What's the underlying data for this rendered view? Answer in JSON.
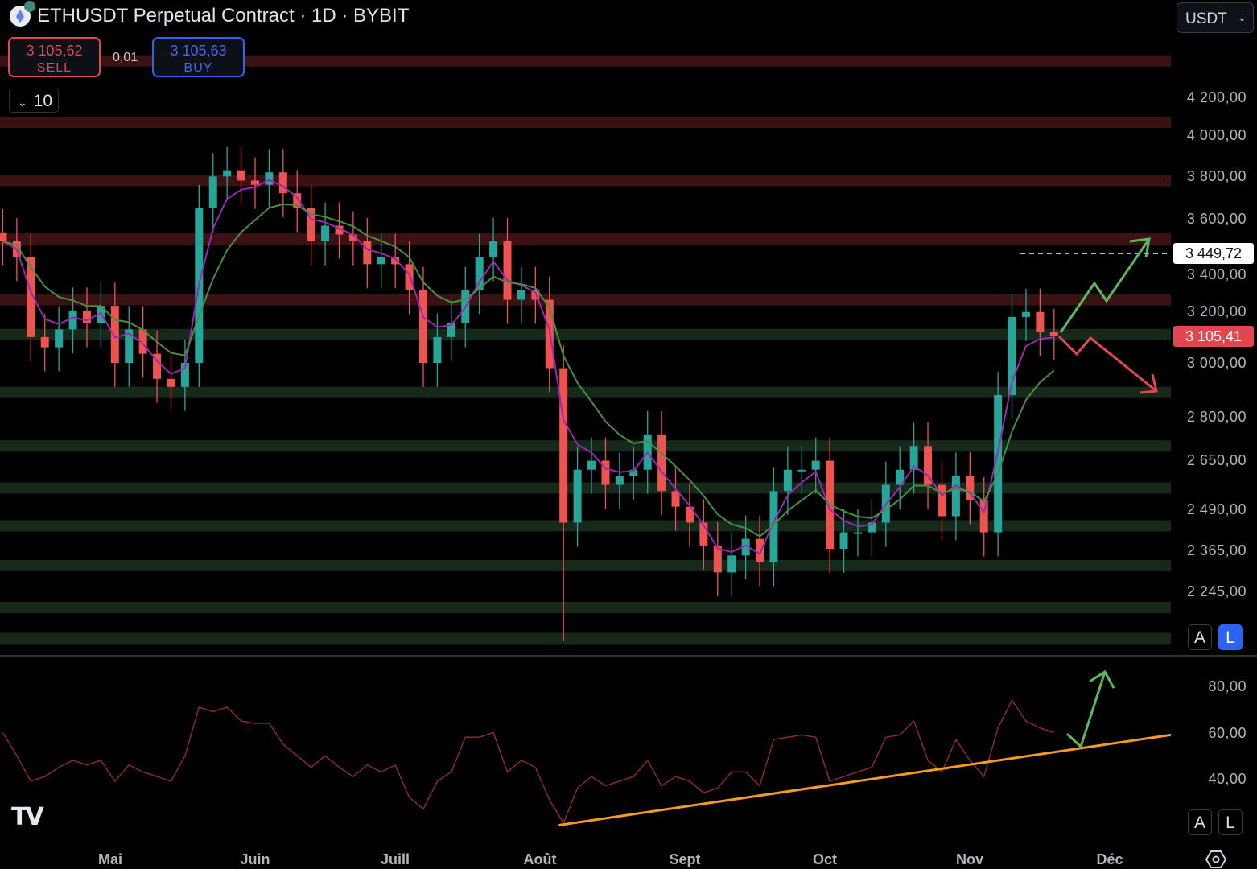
{
  "header": {
    "title": "ETHUSDT Perpetual Contract · 1D · BYBIT",
    "sell_price": "3 105,62",
    "sell_label": "SELL",
    "spread": "0,01",
    "buy_price": "3 105,63",
    "buy_label": "BUY",
    "quantity": "10",
    "currency": "USDT"
  },
  "price_axis": {
    "ticks": [
      "4 200,00",
      "4 000,00",
      "3 800,00",
      "3 600,00",
      "3 400,00",
      "3 200,00",
      "3 000,00",
      "2 800,00",
      "2 650,00",
      "2 490,00",
      "2 365,00",
      "2 245,00"
    ],
    "high_marker": "3 449,72",
    "last_price": "3 105,41",
    "auto_label": "A",
    "log_label": "L",
    "log_scale": true
  },
  "rsi_axis": {
    "ticks": [
      "80,00",
      "60,00",
      "40,00"
    ],
    "auto_label": "A",
    "log_label": "L"
  },
  "time_axis": {
    "months": [
      "Mai",
      "Juin",
      "Juill",
      "Août",
      "Sept",
      "Oct",
      "Nov",
      "Déc"
    ]
  },
  "colors": {
    "up": "#26a69a",
    "down": "#ef5350",
    "ma_fast": "#9c27b0",
    "ma_slow": "#4a8f3f",
    "resistance": "#3a1214",
    "support": "#16291a",
    "rsi": "#8b2a2a",
    "trendline": "#f59a23",
    "arrow_up": "#5cb85c",
    "arrow_down": "#e0474f"
  },
  "chart_data": {
    "type": "candlestick",
    "scale": "log",
    "ylim": [
      2100,
      4450
    ],
    "dates": [
      "2024-04-08",
      "2024-04-11",
      "2024-04-14",
      "2024-04-17",
      "2024-04-20",
      "2024-04-23",
      "2024-04-26",
      "2024-04-29",
      "2024-05-02",
      "2024-05-05",
      "2024-05-08",
      "2024-05-11",
      "2024-05-14",
      "2024-05-17",
      "2024-05-20",
      "2024-05-23",
      "2024-05-26",
      "2024-05-29",
      "2024-06-01",
      "2024-06-04",
      "2024-06-07",
      "2024-06-10",
      "2024-06-13",
      "2024-06-16",
      "2024-06-19",
      "2024-06-22",
      "2024-06-25",
      "2024-06-28",
      "2024-07-01",
      "2024-07-04",
      "2024-07-07",
      "2024-07-10",
      "2024-07-13",
      "2024-07-16",
      "2024-07-19",
      "2024-07-22",
      "2024-07-25",
      "2024-07-28",
      "2024-07-31",
      "2024-08-03",
      "2024-08-06",
      "2024-08-09",
      "2024-08-12",
      "2024-08-15",
      "2024-08-18",
      "2024-08-21",
      "2024-08-24",
      "2024-08-27",
      "2024-08-30",
      "2024-09-02",
      "2024-09-05",
      "2024-09-08",
      "2024-09-11",
      "2024-09-14",
      "2024-09-17",
      "2024-09-20",
      "2024-09-23",
      "2024-09-26",
      "2024-09-29",
      "2024-10-02",
      "2024-10-05",
      "2024-10-08",
      "2024-10-11",
      "2024-10-14",
      "2024-10-17",
      "2024-10-20",
      "2024-10-23",
      "2024-10-26",
      "2024-10-29",
      "2024-11-01",
      "2024-11-04",
      "2024-11-07",
      "2024-11-10",
      "2024-11-13",
      "2024-11-16",
      "2024-11-19"
    ],
    "close": [
      3500,
      3430,
      3100,
      3060,
      3130,
      3205,
      3155,
      3225,
      3000,
      3130,
      3035,
      2940,
      2910,
      3000,
      3650,
      3800,
      3830,
      3780,
      3760,
      3820,
      3720,
      3650,
      3500,
      3570,
      3530,
      3500,
      3400,
      3430,
      3400,
      3290,
      3000,
      3100,
      3155,
      3290,
      3430,
      3500,
      3250,
      3290,
      3250,
      2980,
      2450,
      2620,
      2650,
      2570,
      2600,
      2620,
      2740,
      2550,
      2500,
      2450,
      2380,
      2300,
      2350,
      2400,
      2330,
      2550,
      2620,
      2620,
      2650,
      2370,
      2420,
      2420,
      2450,
      2570,
      2620,
      2700,
      2570,
      2470,
      2600,
      2520,
      2420,
      2880,
      3180,
      3200,
      3120,
      3105
    ],
    "rsi": [
      60,
      50,
      39,
      41,
      45,
      48,
      46,
      48,
      39,
      46,
      43,
      41,
      39,
      50,
      71,
      69,
      71,
      65,
      64,
      64,
      55,
      50,
      45,
      50,
      45,
      41,
      46,
      43,
      46,
      32,
      27,
      39,
      43,
      58,
      58,
      60,
      43,
      48,
      45,
      31,
      21,
      36,
      41,
      37,
      39,
      41,
      48,
      37,
      41,
      39,
      34,
      36,
      43,
      43,
      37,
      57,
      58,
      59,
      58,
      39,
      41,
      43,
      45,
      58,
      59,
      65,
      48,
      43,
      57,
      48,
      41,
      62,
      74,
      65,
      62,
      60
    ],
    "rsi_ylim": [
      15,
      85
    ],
    "resistance_zones": [
      4400,
      4070,
      3780,
      3510,
      3250
    ],
    "support_zones": [
      3110,
      2890,
      2700,
      2560,
      2440,
      2320,
      2200,
      2115
    ],
    "rsi_trendline": {
      "from": [
        "2024-08-05",
        20
      ],
      "to": [
        "2024-12-14",
        59
      ]
    }
  }
}
